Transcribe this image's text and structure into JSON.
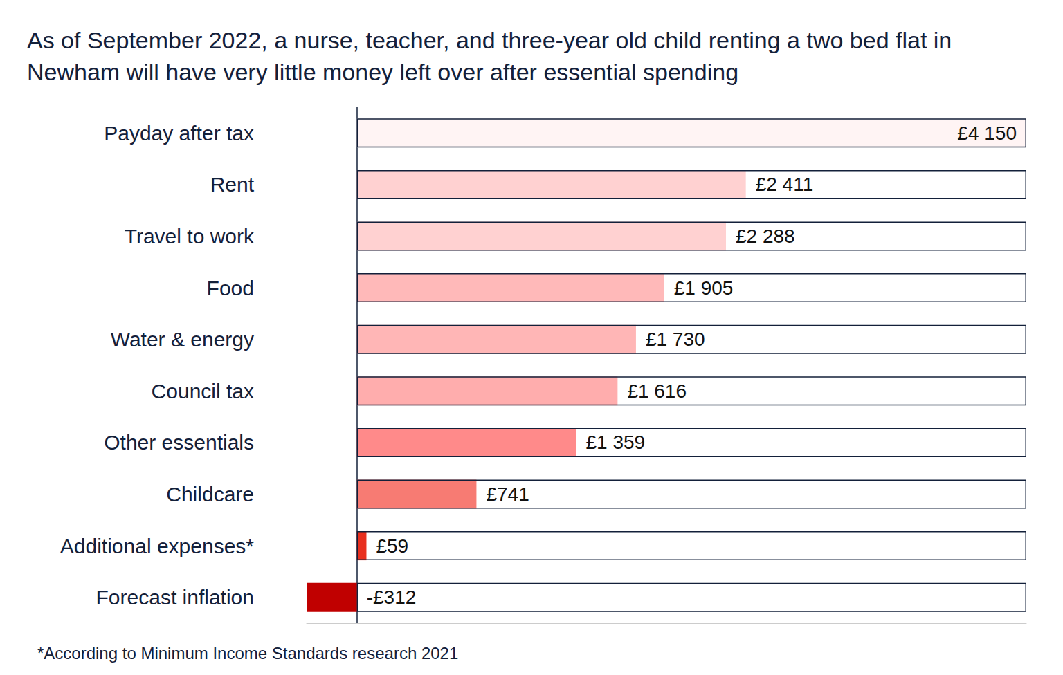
{
  "chart_data": {
    "type": "bar",
    "orientation": "horizontal",
    "title": "As of September 2022, a nurse, teacher, and three-year old child renting a two bed flat in Newham will have very little money left over after essential spending",
    "footnote": "*According to Minimum Income Standards research 2021",
    "categories": [
      "Payday after tax",
      "Rent",
      "Travel to work",
      "Food",
      "Water & energy",
      "Council tax",
      "Other essentials",
      "Childcare",
      "Additional expenses*",
      "Forecast inflation"
    ],
    "values": [
      4150,
      2411,
      2288,
      1905,
      1730,
      1616,
      1359,
      741,
      59,
      -312
    ],
    "value_labels": [
      "£4 150",
      "£2 411",
      "£2 288",
      "£1 905",
      "£1 730",
      "£1 616",
      "£1 359",
      "£741",
      "£59",
      "-£312"
    ],
    "colors": [
      "#fff4f4",
      "#ffd1d1",
      "#ffd1d1",
      "#ffb9b9",
      "#ffb6b6",
      "#ffadad",
      "#ff8a8a",
      "#f77b73",
      "#e8301f",
      "#c00000"
    ],
    "xlim": [
      -312,
      4150
    ],
    "tick_labels": false,
    "data_labels": true,
    "grid": false
  }
}
